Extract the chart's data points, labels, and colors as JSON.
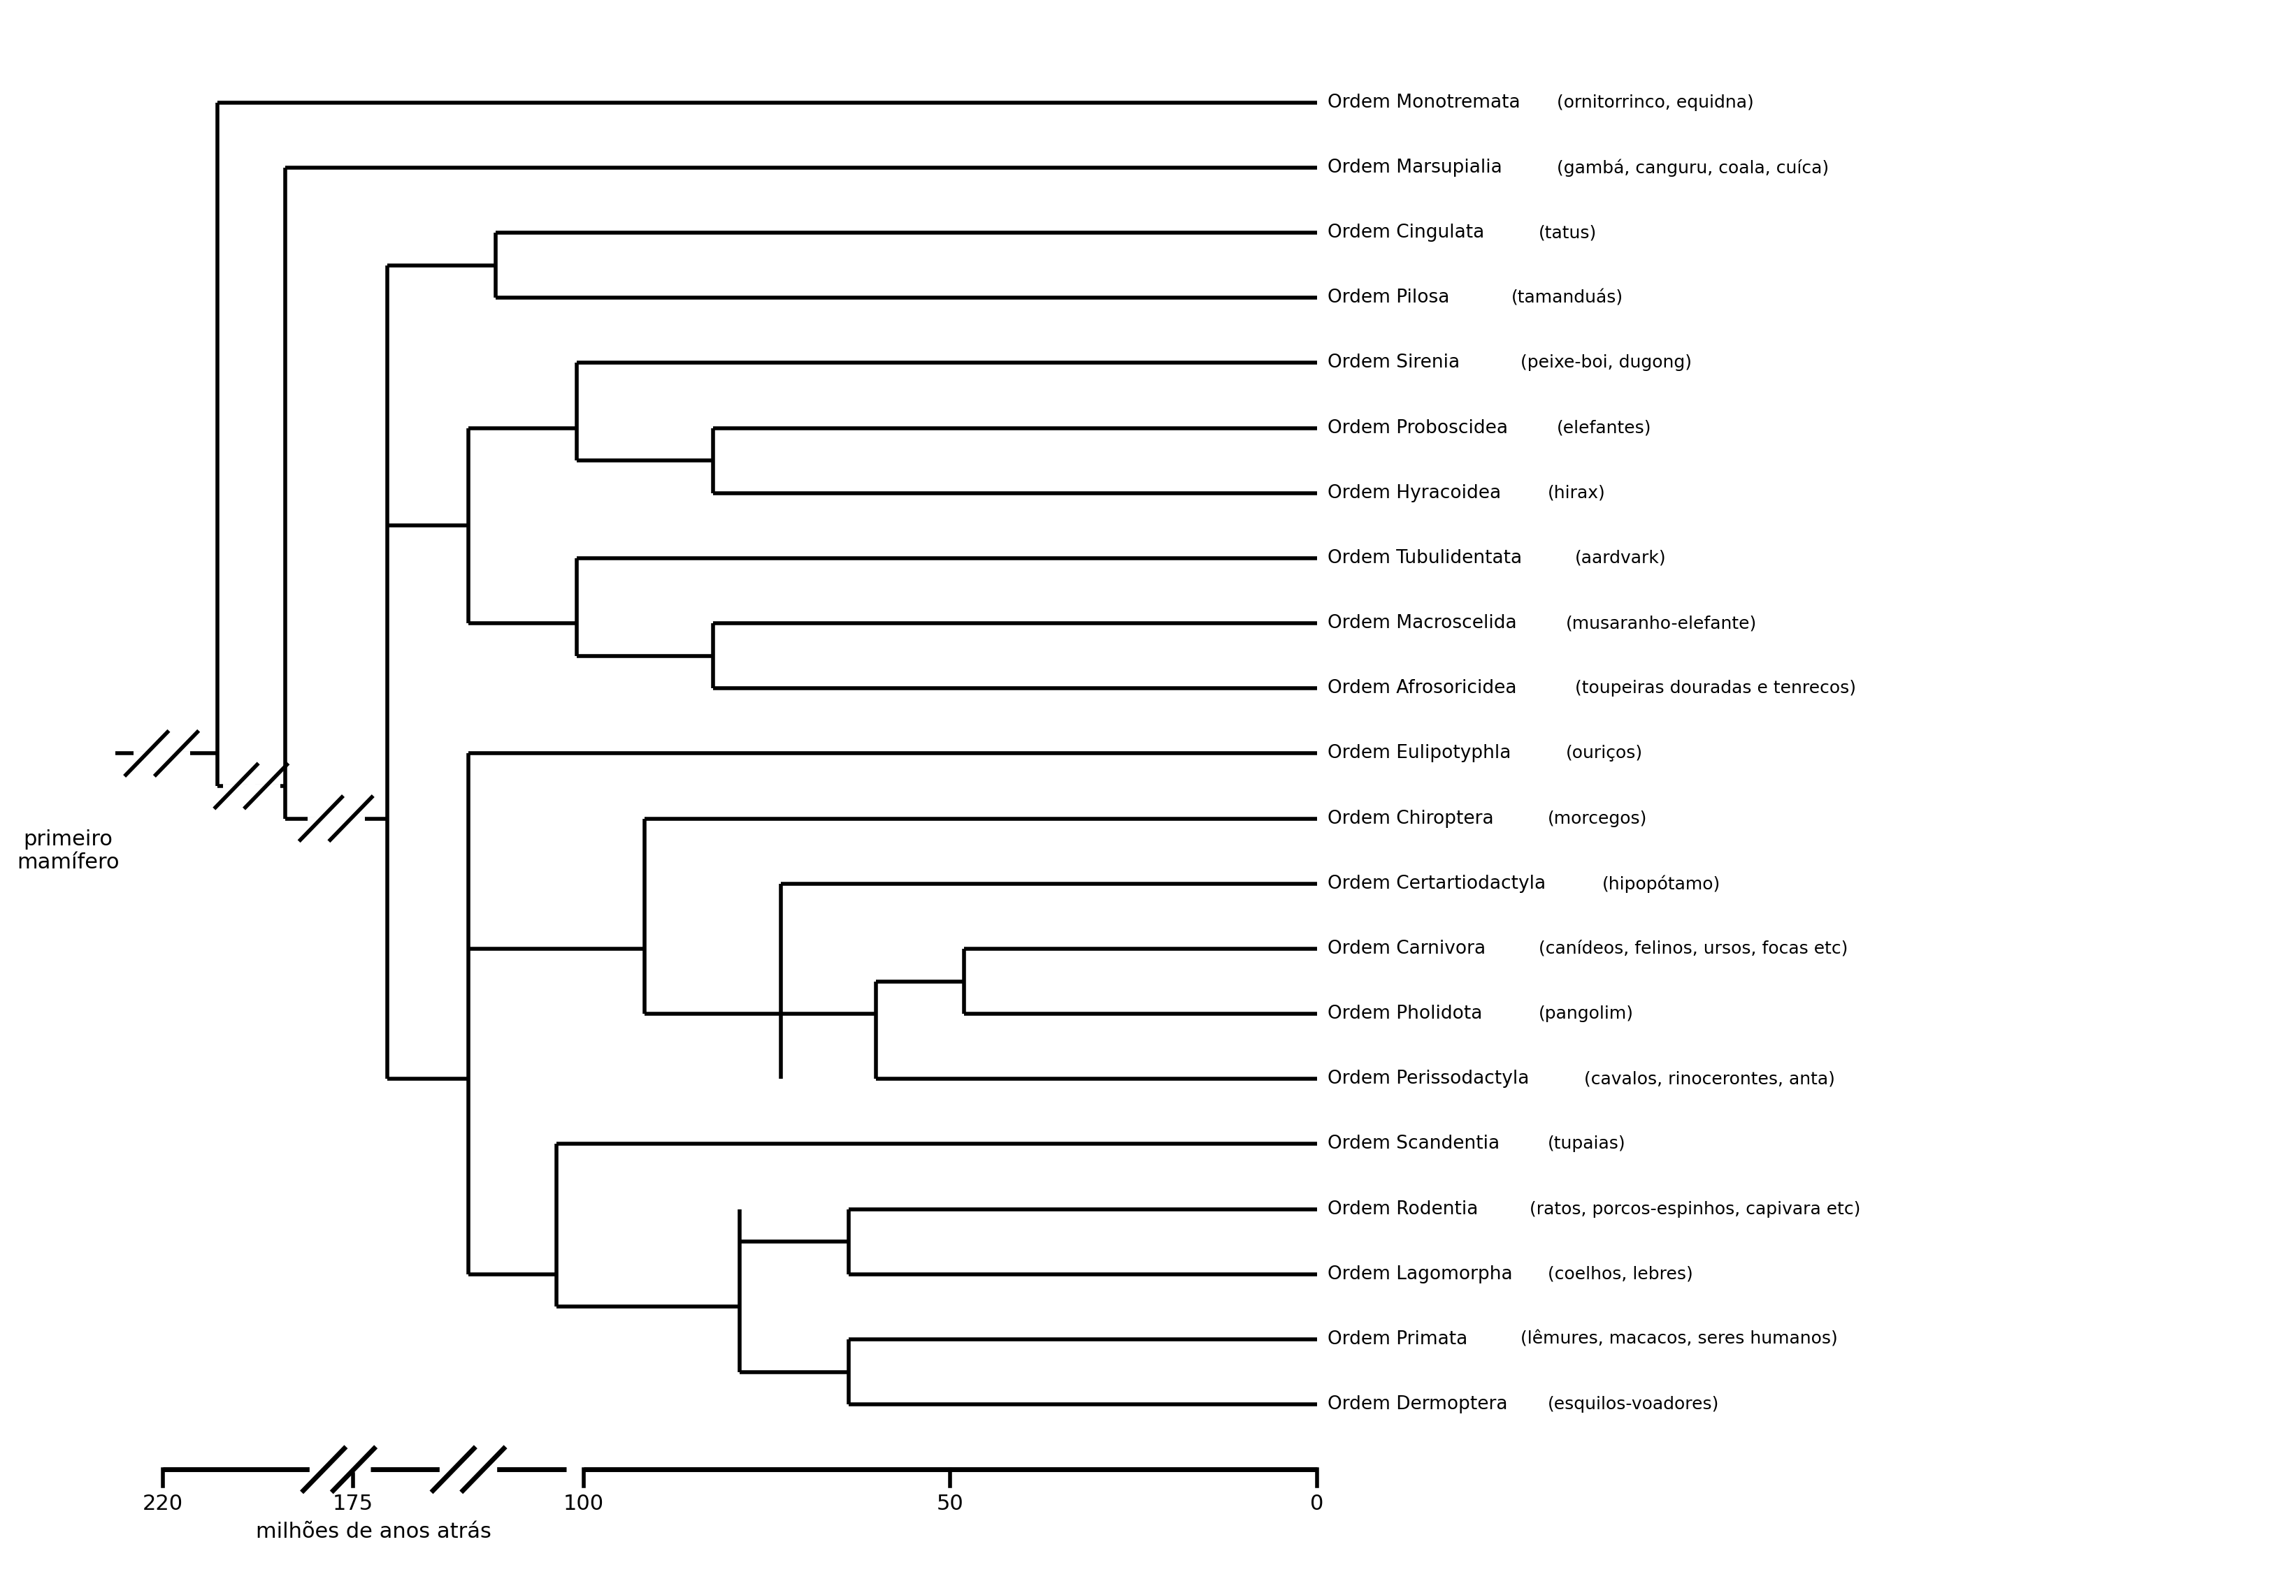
{
  "taxa": [
    {
      "name": "Ordem Monotremata",
      "desc": "(ornitorrinco, equidna)",
      "y": 21
    },
    {
      "name": "Ordem Marsupialia",
      "desc": "(gambá, canguru, coala, cuíca)",
      "y": 20
    },
    {
      "name": "Ordem Cingulata",
      "desc": "(tatus)",
      "y": 19
    },
    {
      "name": "Ordem Pilosa",
      "desc": "(tamanduás)",
      "y": 18
    },
    {
      "name": "Ordem Sirenia",
      "desc": "(peixe-boi, dugong)",
      "y": 17
    },
    {
      "name": "Ordem Proboscidea",
      "desc": "(elefantes)",
      "y": 16
    },
    {
      "name": "Ordem Hyracoidea",
      "desc": "(hirax)",
      "y": 15
    },
    {
      "name": "Ordem Tubulidentata",
      "desc": "(aardvark)",
      "y": 14
    },
    {
      "name": "Ordem Macroscelida",
      "desc": "(musaranho-elefante)",
      "y": 13
    },
    {
      "name": "Ordem Afrosoricidea",
      "desc": "(toupeiras douradas e tenrecos)",
      "y": 12
    },
    {
      "name": "Ordem Eulipotyphla",
      "desc": "(ouriços)",
      "y": 11
    },
    {
      "name": "Ordem Chiroptera",
      "desc": "(morcegos)",
      "y": 10
    },
    {
      "name": "Ordem Certartiodactyla",
      "desc": "(hipopótamo)",
      "y": 9
    },
    {
      "name": "Ordem Carnivora",
      "desc": "(canídeos, felinos, ursos, focas etc)",
      "y": 8
    },
    {
      "name": "Ordem Pholidota",
      "desc": "(pangolim)",
      "y": 7
    },
    {
      "name": "Ordem Perissodactyla",
      "desc": "(cavalos, rinocerontes, anta)",
      "y": 6
    },
    {
      "name": "Ordem Scandentia",
      "desc": "(tupaias)",
      "y": 5
    },
    {
      "name": "Ordem Rodentia",
      "desc": "(ratos, porcos-espinhos, capivara etc)",
      "y": 4
    },
    {
      "name": "Ordem Lagomorpha",
      "desc": "(coelhos, lebres)",
      "y": 3
    },
    {
      "name": "Ordem Primata",
      "desc": "(lêmures, macacos, seres humanos)",
      "y": 2
    },
    {
      "name": "Ordem Dermoptera",
      "desc": "(esquilos-voadores)",
      "y": 1
    }
  ],
  "root_label": "primeiro\nmamífero",
  "xlabel": "milhões de anos atrás",
  "axis_labels": [
    "220",
    "175",
    "100",
    "50",
    "0"
  ],
  "bg_color": "#ffffff",
  "line_color": "#000000",
  "line_width": 4.0,
  "name_fontsize": 19,
  "desc_fontsize": 18,
  "axis_fontsize": 22,
  "root_fontsize": 22
}
